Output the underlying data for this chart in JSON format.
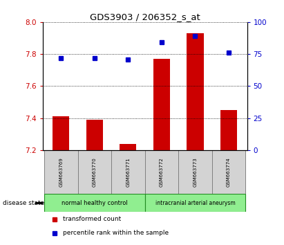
{
  "title": "GDS3903 / 206352_s_at",
  "samples": [
    "GSM663769",
    "GSM663770",
    "GSM663771",
    "GSM663772",
    "GSM663773",
    "GSM663774"
  ],
  "transformed_count": [
    7.41,
    7.39,
    7.24,
    7.77,
    7.93,
    7.45
  ],
  "percentile_rank": [
    72,
    72,
    71,
    84,
    89,
    76
  ],
  "ylim_left": [
    7.2,
    8.0
  ],
  "ylim_right": [
    0,
    100
  ],
  "yticks_left": [
    7.2,
    7.4,
    7.6,
    7.8,
    8.0
  ],
  "yticks_right": [
    0,
    25,
    50,
    75,
    100
  ],
  "bar_color": "#cc0000",
  "dot_color": "#0000cc",
  "group1_label": "normal healthy control",
  "group2_label": "intracranial arterial aneurysm",
  "group1_indices": [
    0,
    1,
    2
  ],
  "group2_indices": [
    3,
    4,
    5
  ],
  "group1_color": "#90ee90",
  "group2_color": "#90ee90",
  "group_edge_color": "#228B22",
  "disease_state_label": "disease state",
  "legend_bar_label": "transformed count",
  "legend_dot_label": "percentile rank within the sample",
  "tick_color_left": "#cc0000",
  "tick_color_right": "#0000cc",
  "bar_bottom": 7.2,
  "hgrid_lines": [
    7.4,
    7.6,
    7.8,
    8.0
  ],
  "sample_box_color": "#d3d3d3",
  "sample_box_edge": "gray"
}
